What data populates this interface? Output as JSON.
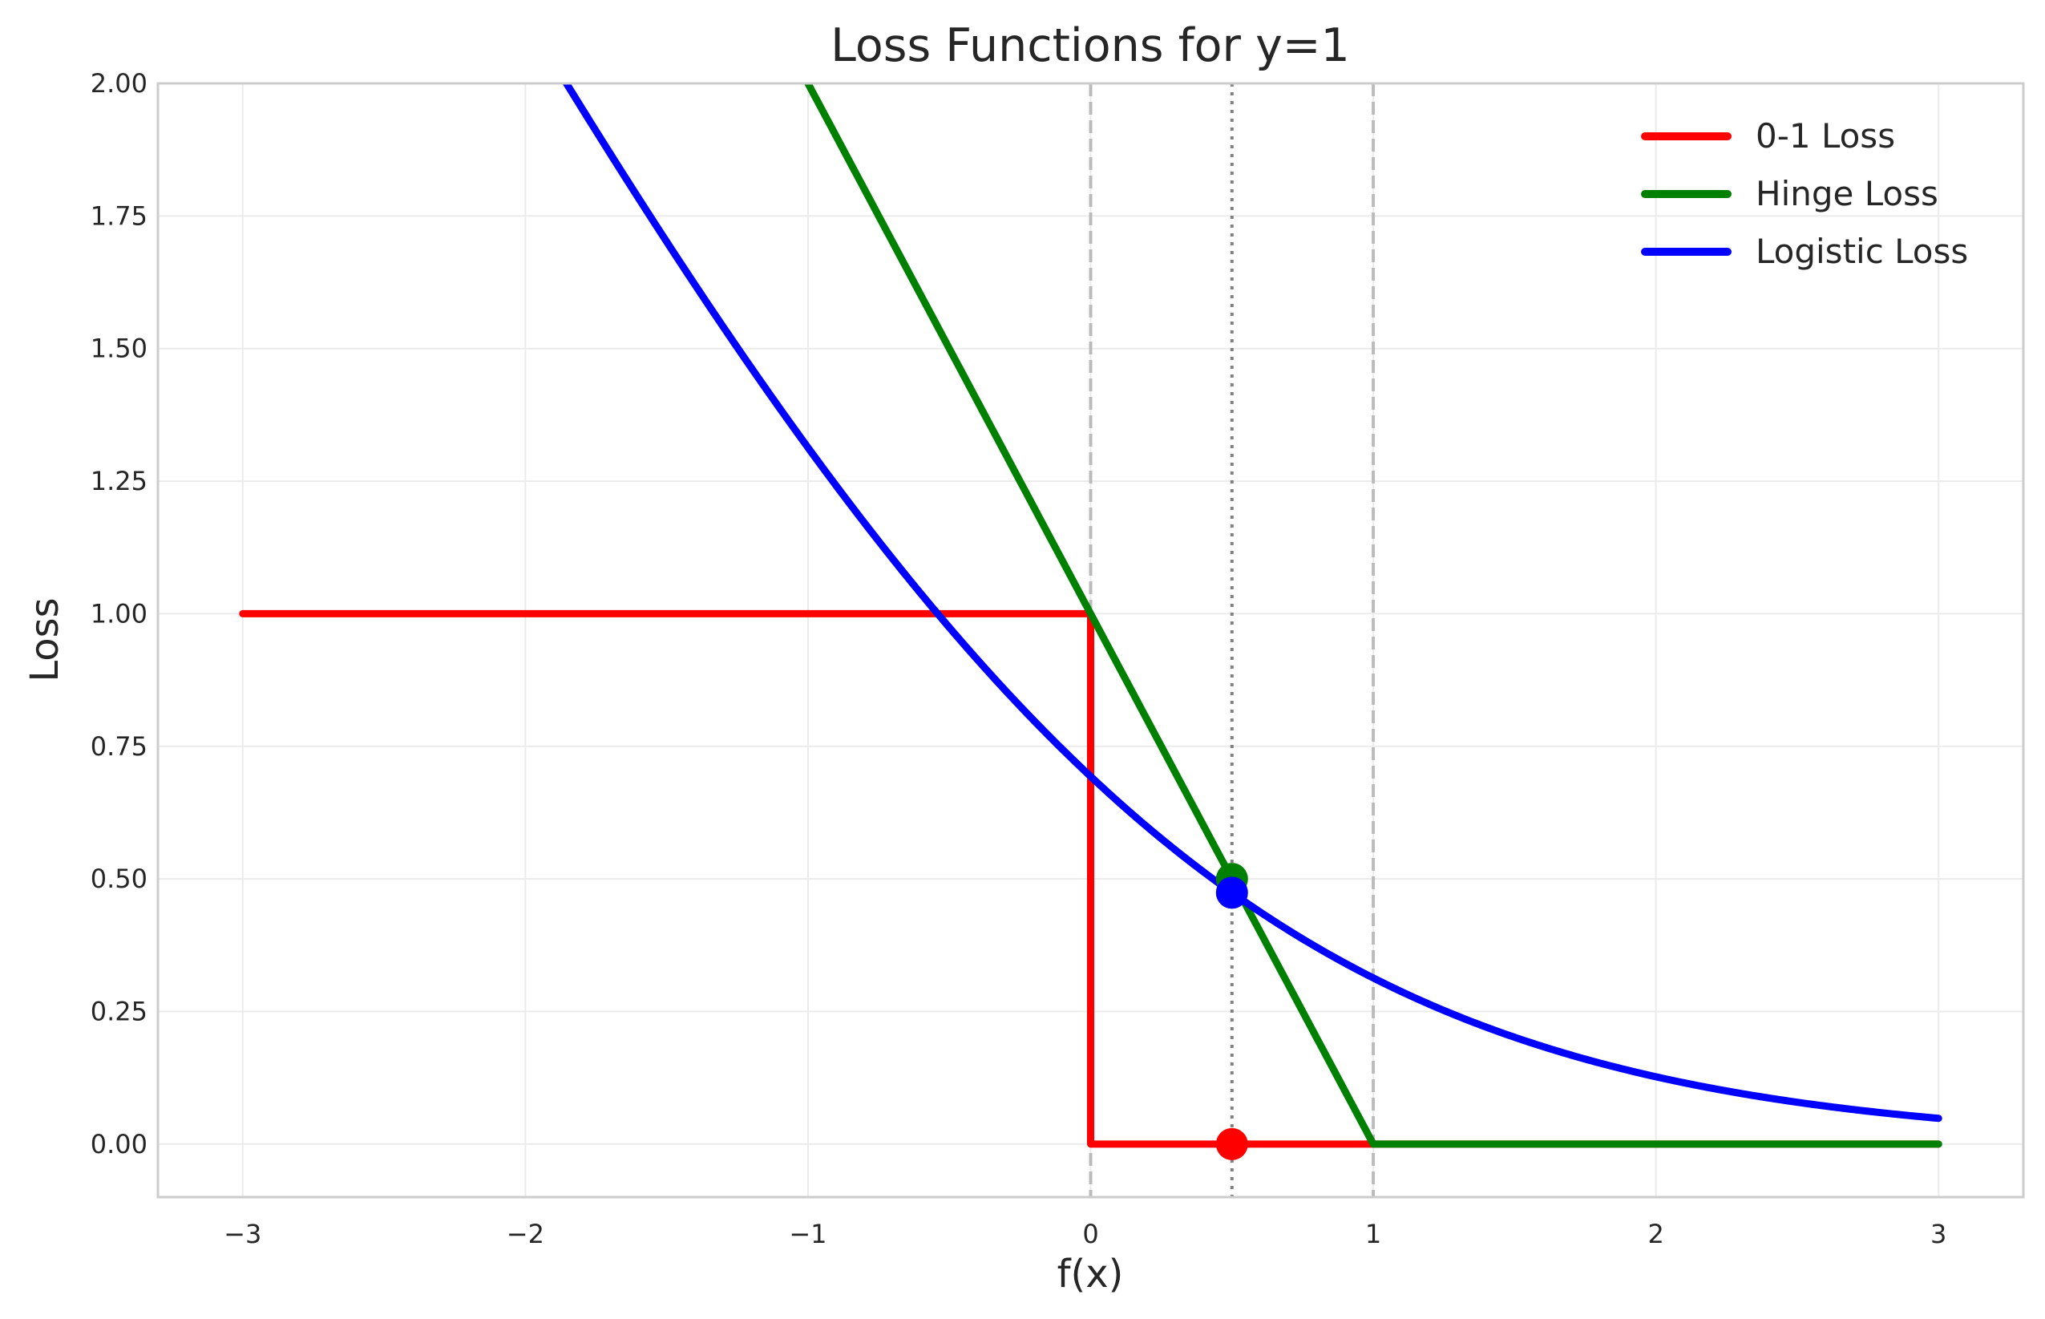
{
  "chart_data": {
    "type": "line",
    "title": "Loss Functions for y=1",
    "xlabel": "f(x)",
    "ylabel": "Loss",
    "xlim": [
      -3.3,
      3.3
    ],
    "ylim": [
      -0.1,
      2.0
    ],
    "grid": true,
    "legend_position": "top-right",
    "xticks": [
      -3,
      -2,
      -1,
      0,
      1,
      2,
      3
    ],
    "xtick_labels": [
      "−3",
      "−2",
      "−1",
      "0",
      "1",
      "2",
      "3"
    ],
    "yticks": [
      0,
      0.25,
      0.5,
      0.75,
      1.0,
      1.25,
      1.5,
      1.75,
      2.0
    ],
    "ytick_labels": [
      "0.00",
      "0.25",
      "0.50",
      "0.75",
      "1.00",
      "1.25",
      "1.50",
      "1.75",
      "2.00"
    ],
    "vlines": [
      {
        "x": 0,
        "style": "dashed",
        "color": "#bbbbbb"
      },
      {
        "x": 1,
        "style": "dashed",
        "color": "#bbbbbb"
      },
      {
        "x": 0.5,
        "style": "dotted",
        "color": "#808080"
      }
    ],
    "series": [
      {
        "name": "0-1 Loss",
        "color": "#ff0000",
        "function": "zero_one",
        "x_range": [
          -3,
          3
        ]
      },
      {
        "name": "Hinge Loss",
        "color": "#008000",
        "function": "hinge",
        "x_range": [
          -3,
          3
        ]
      },
      {
        "name": "Logistic Loss",
        "color": "#0000ff",
        "function": "logistic",
        "x_range": [
          -3,
          3
        ]
      }
    ],
    "markers": [
      {
        "series": "Hinge Loss",
        "x": 0.5,
        "y": 0.5,
        "color": "#008000"
      },
      {
        "series": "Logistic Loss",
        "x": 0.5,
        "y": 0.474,
        "color": "#0000ff"
      },
      {
        "series": "0-1 Loss",
        "x": 0.5,
        "y": 0.0,
        "color": "#ff0000"
      }
    ]
  }
}
